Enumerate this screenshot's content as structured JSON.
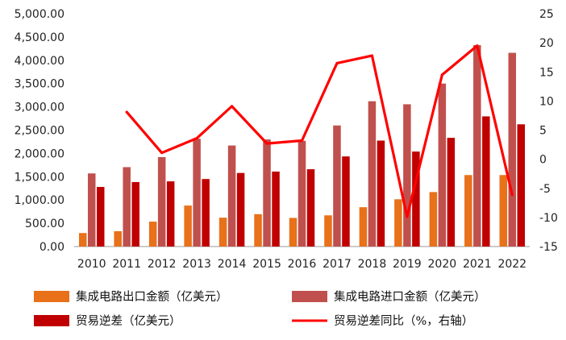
{
  "chart_data": {
    "type": "bar",
    "categories": [
      "2010",
      "2011",
      "2012",
      "2013",
      "2014",
      "2015",
      "2016",
      "2017",
      "2018",
      "2019",
      "2020",
      "2021",
      "2022"
    ],
    "series": [
      {
        "name": "集成电路出口金额（亿美元）",
        "kind": "bar",
        "axis": "left",
        "color": "#E8711A",
        "values": [
          290,
          330,
          535,
          880,
          620,
          695,
          615,
          670,
          845,
          1015,
          1170,
          1535,
          1535
        ]
      },
      {
        "name": "集成电路进口金额（亿美元）",
        "kind": "bar",
        "axis": "left",
        "color": "#C0504D",
        "values": [
          1570,
          1705,
          1920,
          2315,
          2170,
          2300,
          2270,
          2600,
          3120,
          3055,
          3500,
          4325,
          4160
        ]
      },
      {
        "name": "贸易逆差（亿美元）",
        "kind": "bar",
        "axis": "left",
        "color": "#C00000",
        "values": [
          1280,
          1385,
          1400,
          1450,
          1580,
          1610,
          1660,
          1935,
          2275,
          2040,
          2335,
          2795,
          2625
        ]
      },
      {
        "name": "贸易逆差同比（%，右轴）",
        "kind": "line",
        "axis": "right",
        "color": "#FF0000",
        "values": [
          null,
          8.1,
          1.1,
          3.6,
          9.1,
          2.7,
          3.2,
          16.5,
          17.8,
          -9.9,
          14.5,
          19.5,
          -6.1
        ]
      }
    ],
    "y_left": {
      "ylim": [
        0,
        5000
      ],
      "ticks": [
        0,
        500,
        1000,
        1500,
        2000,
        2500,
        3000,
        3500,
        4000,
        4500,
        5000
      ],
      "tick_labels": [
        "0.00",
        "500.00",
        "1,000.00",
        "1,500.00",
        "2,000.00",
        "2,500.00",
        "3,000.00",
        "3,500.00",
        "4,000.00",
        "4,500.00",
        "5,000.00"
      ]
    },
    "y_right": {
      "ylim": [
        -15,
        25
      ],
      "ticks": [
        -15,
        -10,
        -5,
        0,
        5,
        10,
        15,
        20,
        25
      ],
      "tick_labels": [
        "-15",
        "-10",
        "-5",
        "0",
        "5",
        "10",
        "15",
        "20",
        "25"
      ]
    },
    "grid": false,
    "legend": "bottom",
    "title": "",
    "xlabel": "",
    "ylabel": ""
  }
}
